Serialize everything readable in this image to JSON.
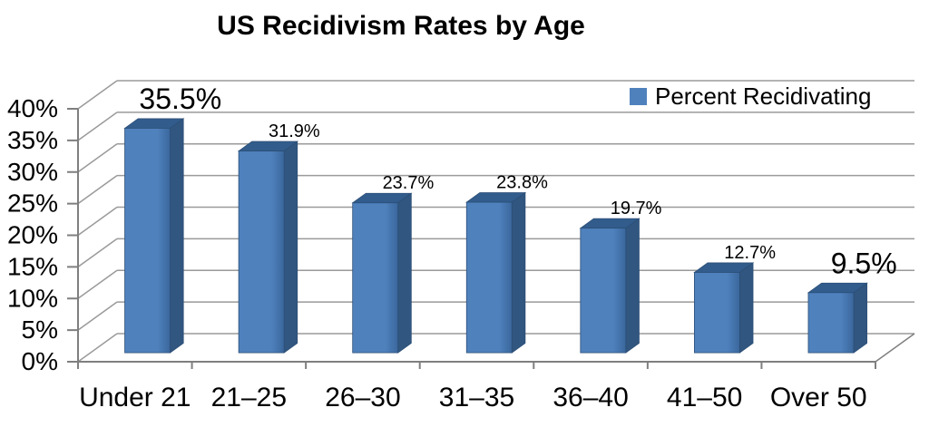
{
  "chart_data": {
    "type": "bar",
    "projection": "3d-column",
    "title": "US Recidivism Rates by Age",
    "categories": [
      "Under 21",
      "21–25",
      "26–30",
      "31–35",
      "36–40",
      "41–50",
      "Over 50"
    ],
    "series": [
      {
        "name": "Percent Recidivating",
        "values": [
          35.5,
          31.9,
          23.7,
          23.8,
          19.7,
          12.7,
          9.5
        ]
      }
    ],
    "data_labels": [
      "35.5%",
      "31.9%",
      "23.7%",
      "23.8%",
      "19.7%",
      "12.7%",
      "9.5%"
    ],
    "label_emphasis": [
      "large",
      "small",
      "small",
      "small",
      "small",
      "small",
      "large"
    ],
    "xlabel": "",
    "ylabel": "",
    "y_ticks": [
      "0%",
      "5%",
      "10%",
      "15%",
      "20%",
      "25%",
      "30%",
      "35%",
      "40%"
    ],
    "ylim": [
      0,
      40
    ],
    "y_step": 5,
    "grid": true,
    "legend_position": "top-right",
    "colors": {
      "bar_front": "#4f81bd",
      "bar_front_shade": "#3a679c",
      "bar_side": "#31567f",
      "bar_top": "#325c8c",
      "bar_outline": "#2c4f77",
      "gridline": "#9a9a9a",
      "axis": "#7f7f7f",
      "text": "#000000",
      "background": "#ffffff"
    }
  }
}
